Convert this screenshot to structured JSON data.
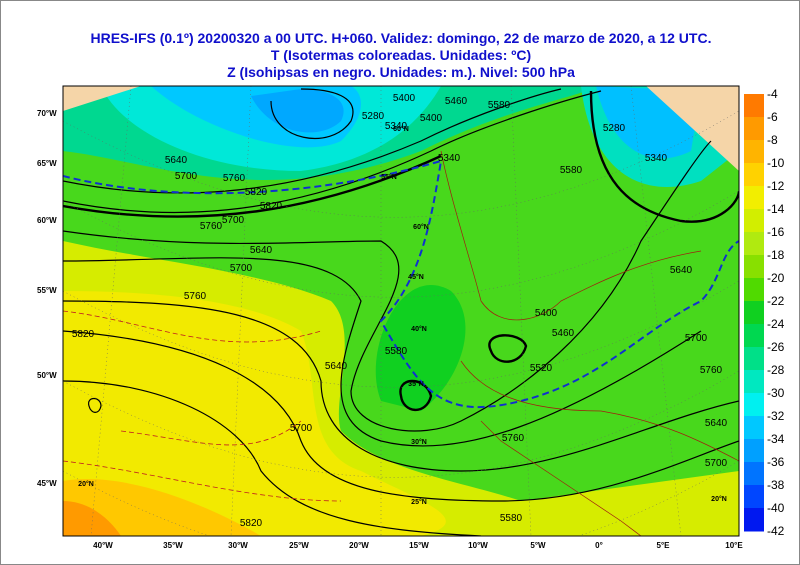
{
  "header": {
    "lines": [
      "HRES-IFS (0.1º) 20200320 a 00 UTC.  H+060. Validez: domingo, 22 de marzo de 2020,  a  12 UTC.",
      "T (Isotermas coloreadas. Unidades: ºC)",
      "Z (Isohipsas en negro. Unidades: m.).   Nivel: 500 hPa"
    ]
  },
  "colorbar": {
    "ticks": [
      -4,
      -6,
      -8,
      -10,
      -12,
      -14,
      -16,
      -18,
      -20,
      -22,
      -24,
      -26,
      -28,
      -30,
      -32,
      -34,
      -36,
      -38,
      -40,
      -42
    ],
    "colors": [
      "#ff7a00",
      "#ff9a00",
      "#ffb400",
      "#ffd200",
      "#f2ee00",
      "#d2ee00",
      "#b0ea10",
      "#88e000",
      "#50da00",
      "#10d020",
      "#00d850",
      "#00e088",
      "#00e8c0",
      "#00f0f0",
      "#00c8ff",
      "#00a0ff",
      "#0074ff",
      "#0046ff",
      "#0018f0"
    ]
  },
  "axes": {
    "lon_labels": [
      "40°W",
      "35°W",
      "30°W",
      "25°W",
      "20°W",
      "15°W",
      "10°W",
      "5°W",
      "0°",
      "5°E",
      "10°E"
    ],
    "lat_labels": [
      "70°W",
      "65°W",
      "60°W",
      "55°W",
      "50°W",
      "45°W"
    ]
  },
  "map": {
    "contour_labels": [
      "5400",
      "5460",
      "5340",
      "5280",
      "5580",
      "5640",
      "5700",
      "5760",
      "5820",
      "5820",
      "5700",
      "5760",
      "5640",
      "5700",
      "5760",
      "5820",
      "5580",
      "5640",
      "5700",
      "5760",
      "5580",
      "5520",
      "5460",
      "5400",
      "5340",
      "5580",
      "5640",
      "5700",
      "5760",
      "5640",
      "5700",
      "5820",
      "5280",
      "5340",
      "5400"
    ],
    "grid_labels": [
      "60°N",
      "55°N",
      "60°N",
      "45°N",
      "40°N",
      "35°N",
      "30°N",
      "25°N",
      "20°N",
      "20°N"
    ]
  }
}
